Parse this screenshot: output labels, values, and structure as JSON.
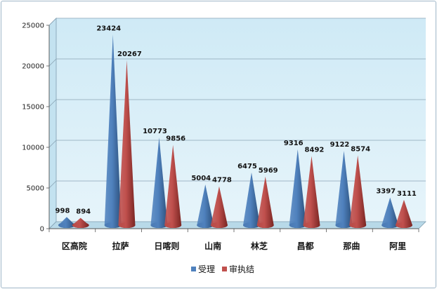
{
  "chart_data": {
    "type": "bar",
    "bar_shape": "cone",
    "categories": [
      "区高院",
      "拉萨",
      "日喀则",
      "山南",
      "林芝",
      "昌都",
      "那曲",
      "阿里"
    ],
    "series": [
      {
        "name": "受理",
        "color": "#4f81bd",
        "values": [
          998,
          23424,
          10773,
          5004,
          6475,
          9316,
          9122,
          3397
        ]
      },
      {
        "name": "审执结",
        "color": "#c0504d",
        "values": [
          894,
          20267,
          9856,
          4778,
          5969,
          8492,
          8574,
          3111
        ]
      }
    ],
    "data_labels": {
      "受理": [
        "998",
        "23424",
        "10773",
        "5004",
        "6475",
        "9316",
        "9122",
        "3397"
      ],
      "审执结": [
        "894",
        "20267",
        "9856",
        "4778",
        "5969",
        "8492",
        "8574",
        "3111"
      ]
    },
    "y_ticks": [
      "0",
      "5000",
      "10000",
      "15000",
      "20000",
      "25000"
    ],
    "ylim": [
      0,
      25000
    ],
    "grid": true,
    "legend_position": "bottom"
  }
}
